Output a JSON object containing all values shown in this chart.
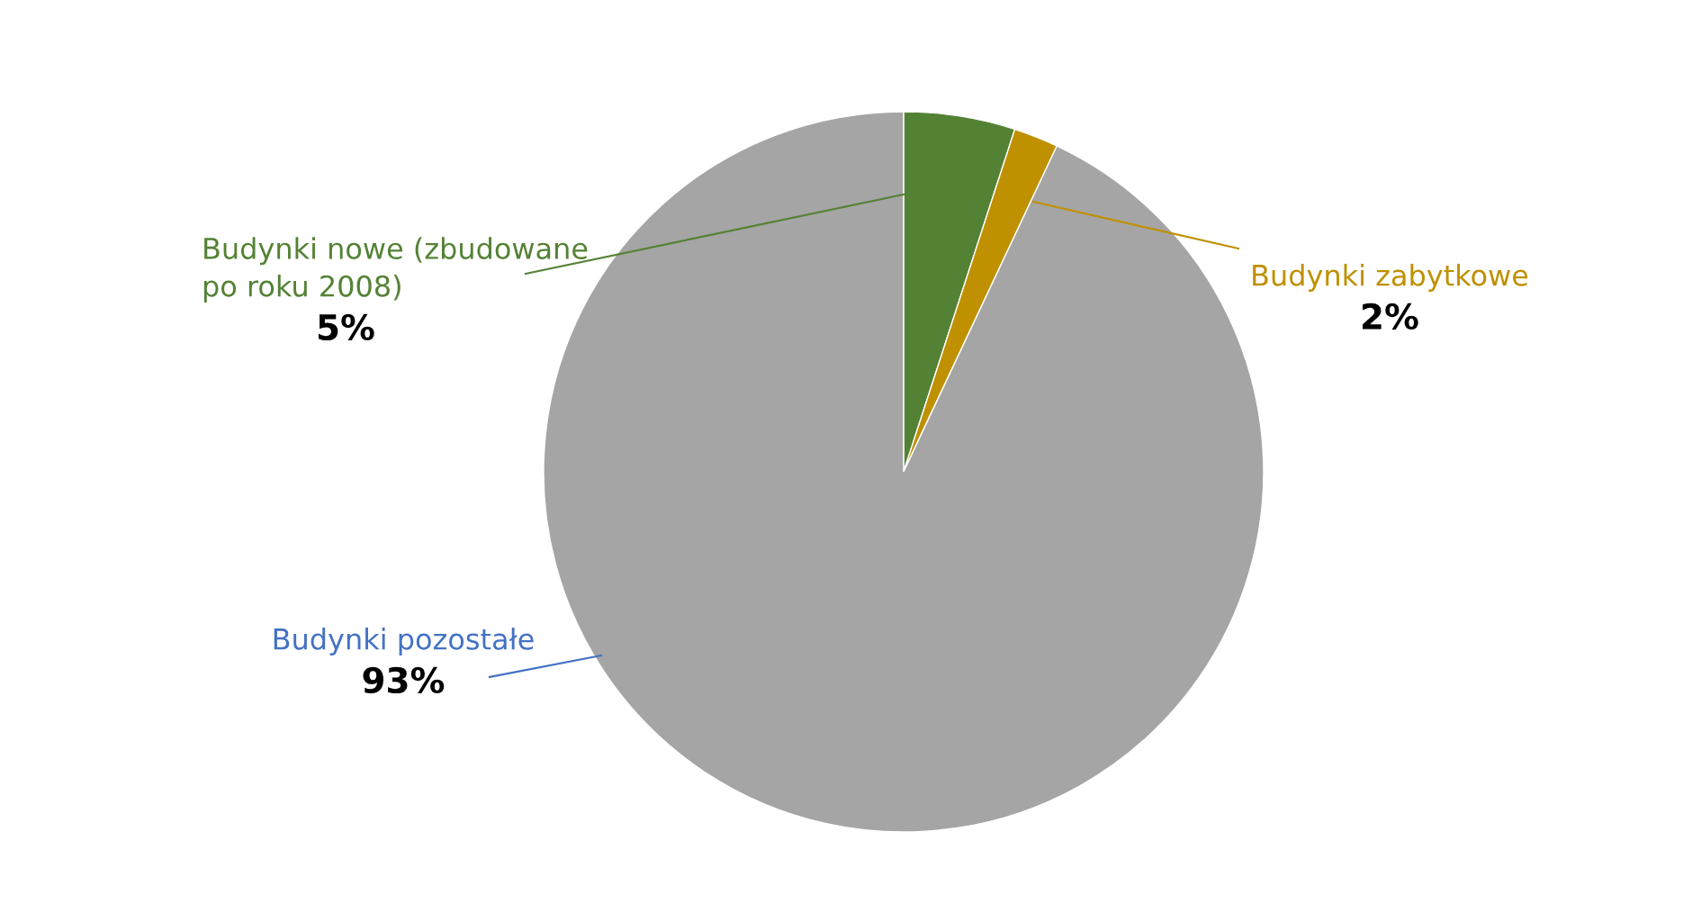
{
  "chart_data": {
    "type": "pie",
    "categories": [
      "Budynki nowe (zbudowane\npo roku 2008)",
      "Budynki zabytkowe",
      "Budynki pozostałe"
    ],
    "values": [
      5,
      2,
      93
    ],
    "value_labels": [
      "5%",
      "2%",
      "93%"
    ],
    "colors": [
      "#548235",
      "#bf9000",
      "#a5a5a5"
    ],
    "legend": false
  }
}
